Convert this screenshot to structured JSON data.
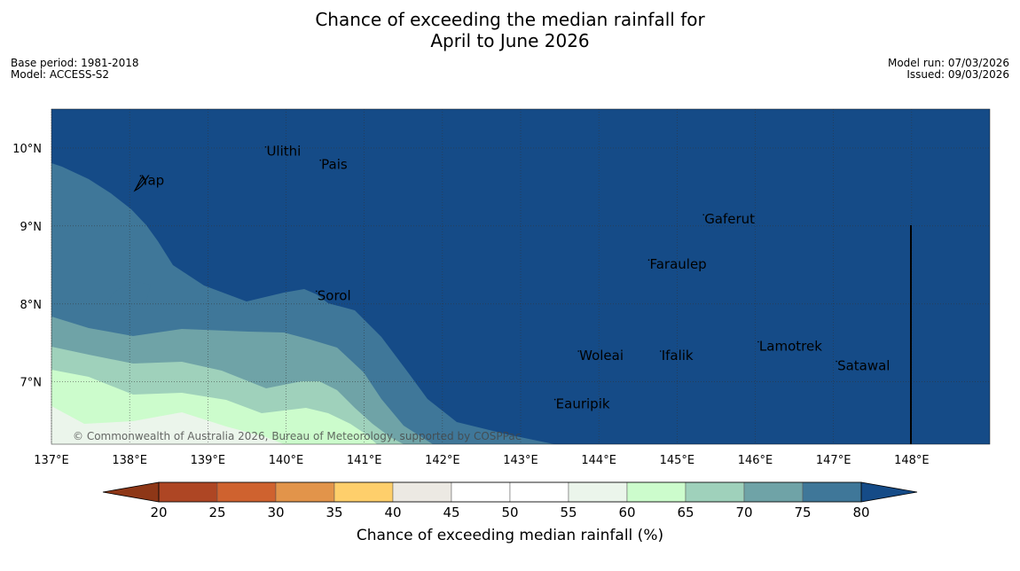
{
  "title": {
    "line1": "Chance of exceeding the median rainfall for",
    "line2": "April to June 2026"
  },
  "meta": {
    "base_period": "Base period: 1981-2018",
    "model": "Model: ACCESS-S2",
    "model_run": "Model run: 07/03/2026",
    "issued": "Issued: 09/03/2026"
  },
  "map": {
    "lon_range": [
      137,
      149
    ],
    "lat_range": [
      6.2,
      10.5
    ],
    "lon_ticks": [
      "137°E",
      "138°E",
      "139°E",
      "140°E",
      "141°E",
      "142°E",
      "143°E",
      "144°E",
      "145°E",
      "146°E",
      "147°E",
      "148°E"
    ],
    "lat_ticks": [
      "7°N",
      "8°N",
      "9°N",
      "10°N"
    ],
    "copyright": "© Commonwealth of Australia 2026, Bureau of Meteorology, supported by COSPPac",
    "places": [
      {
        "name": "Ulithi",
        "lon": 139.75,
        "lat": 9.9
      },
      {
        "name": "Pais",
        "lon": 140.45,
        "lat": 9.73
      },
      {
        "name": "Yap",
        "lon": 138.15,
        "lat": 9.53
      },
      {
        "name": "Gaferut",
        "lon": 145.35,
        "lat": 9.03
      },
      {
        "name": "Faraulep",
        "lon": 144.65,
        "lat": 8.45
      },
      {
        "name": "Sorol",
        "lon": 140.4,
        "lat": 8.05
      },
      {
        "name": "Lamotrek",
        "lon": 146.05,
        "lat": 7.4
      },
      {
        "name": "Woleai",
        "lon": 143.75,
        "lat": 7.28
      },
      {
        "name": "Ifalik",
        "lon": 144.8,
        "lat": 7.28
      },
      {
        "name": "Satawal",
        "lon": 147.05,
        "lat": 7.15
      },
      {
        "name": "Eauripik",
        "lon": 143.45,
        "lat": 6.66
      }
    ],
    "colors": {
      "above80": "#154b87",
      "band75_80": "#3f7799",
      "band70_75": "#6fa3a7",
      "band65_70": "#9fd1bb",
      "band60_65": "#ccfccc",
      "band55_60": "#ebf5eb",
      "grid": "#333333"
    }
  },
  "colorbar": {
    "label": "Chance of exceeding median rainfall (%)",
    "ticks": [
      "20",
      "25",
      "30",
      "35",
      "40",
      "45",
      "50",
      "55",
      "60",
      "65",
      "70",
      "75",
      "80"
    ],
    "under_color": "#8e3717",
    "over_color": "#154b87",
    "segment_colors": [
      "#ae4624",
      "#cf622f",
      "#e2944a",
      "#fecf6b",
      "#ece9e3",
      "#ffffff",
      "#ffffff",
      "#ebf5eb",
      "#ccfccc",
      "#9fd1bb",
      "#6fa3a7",
      "#3f7799"
    ]
  }
}
